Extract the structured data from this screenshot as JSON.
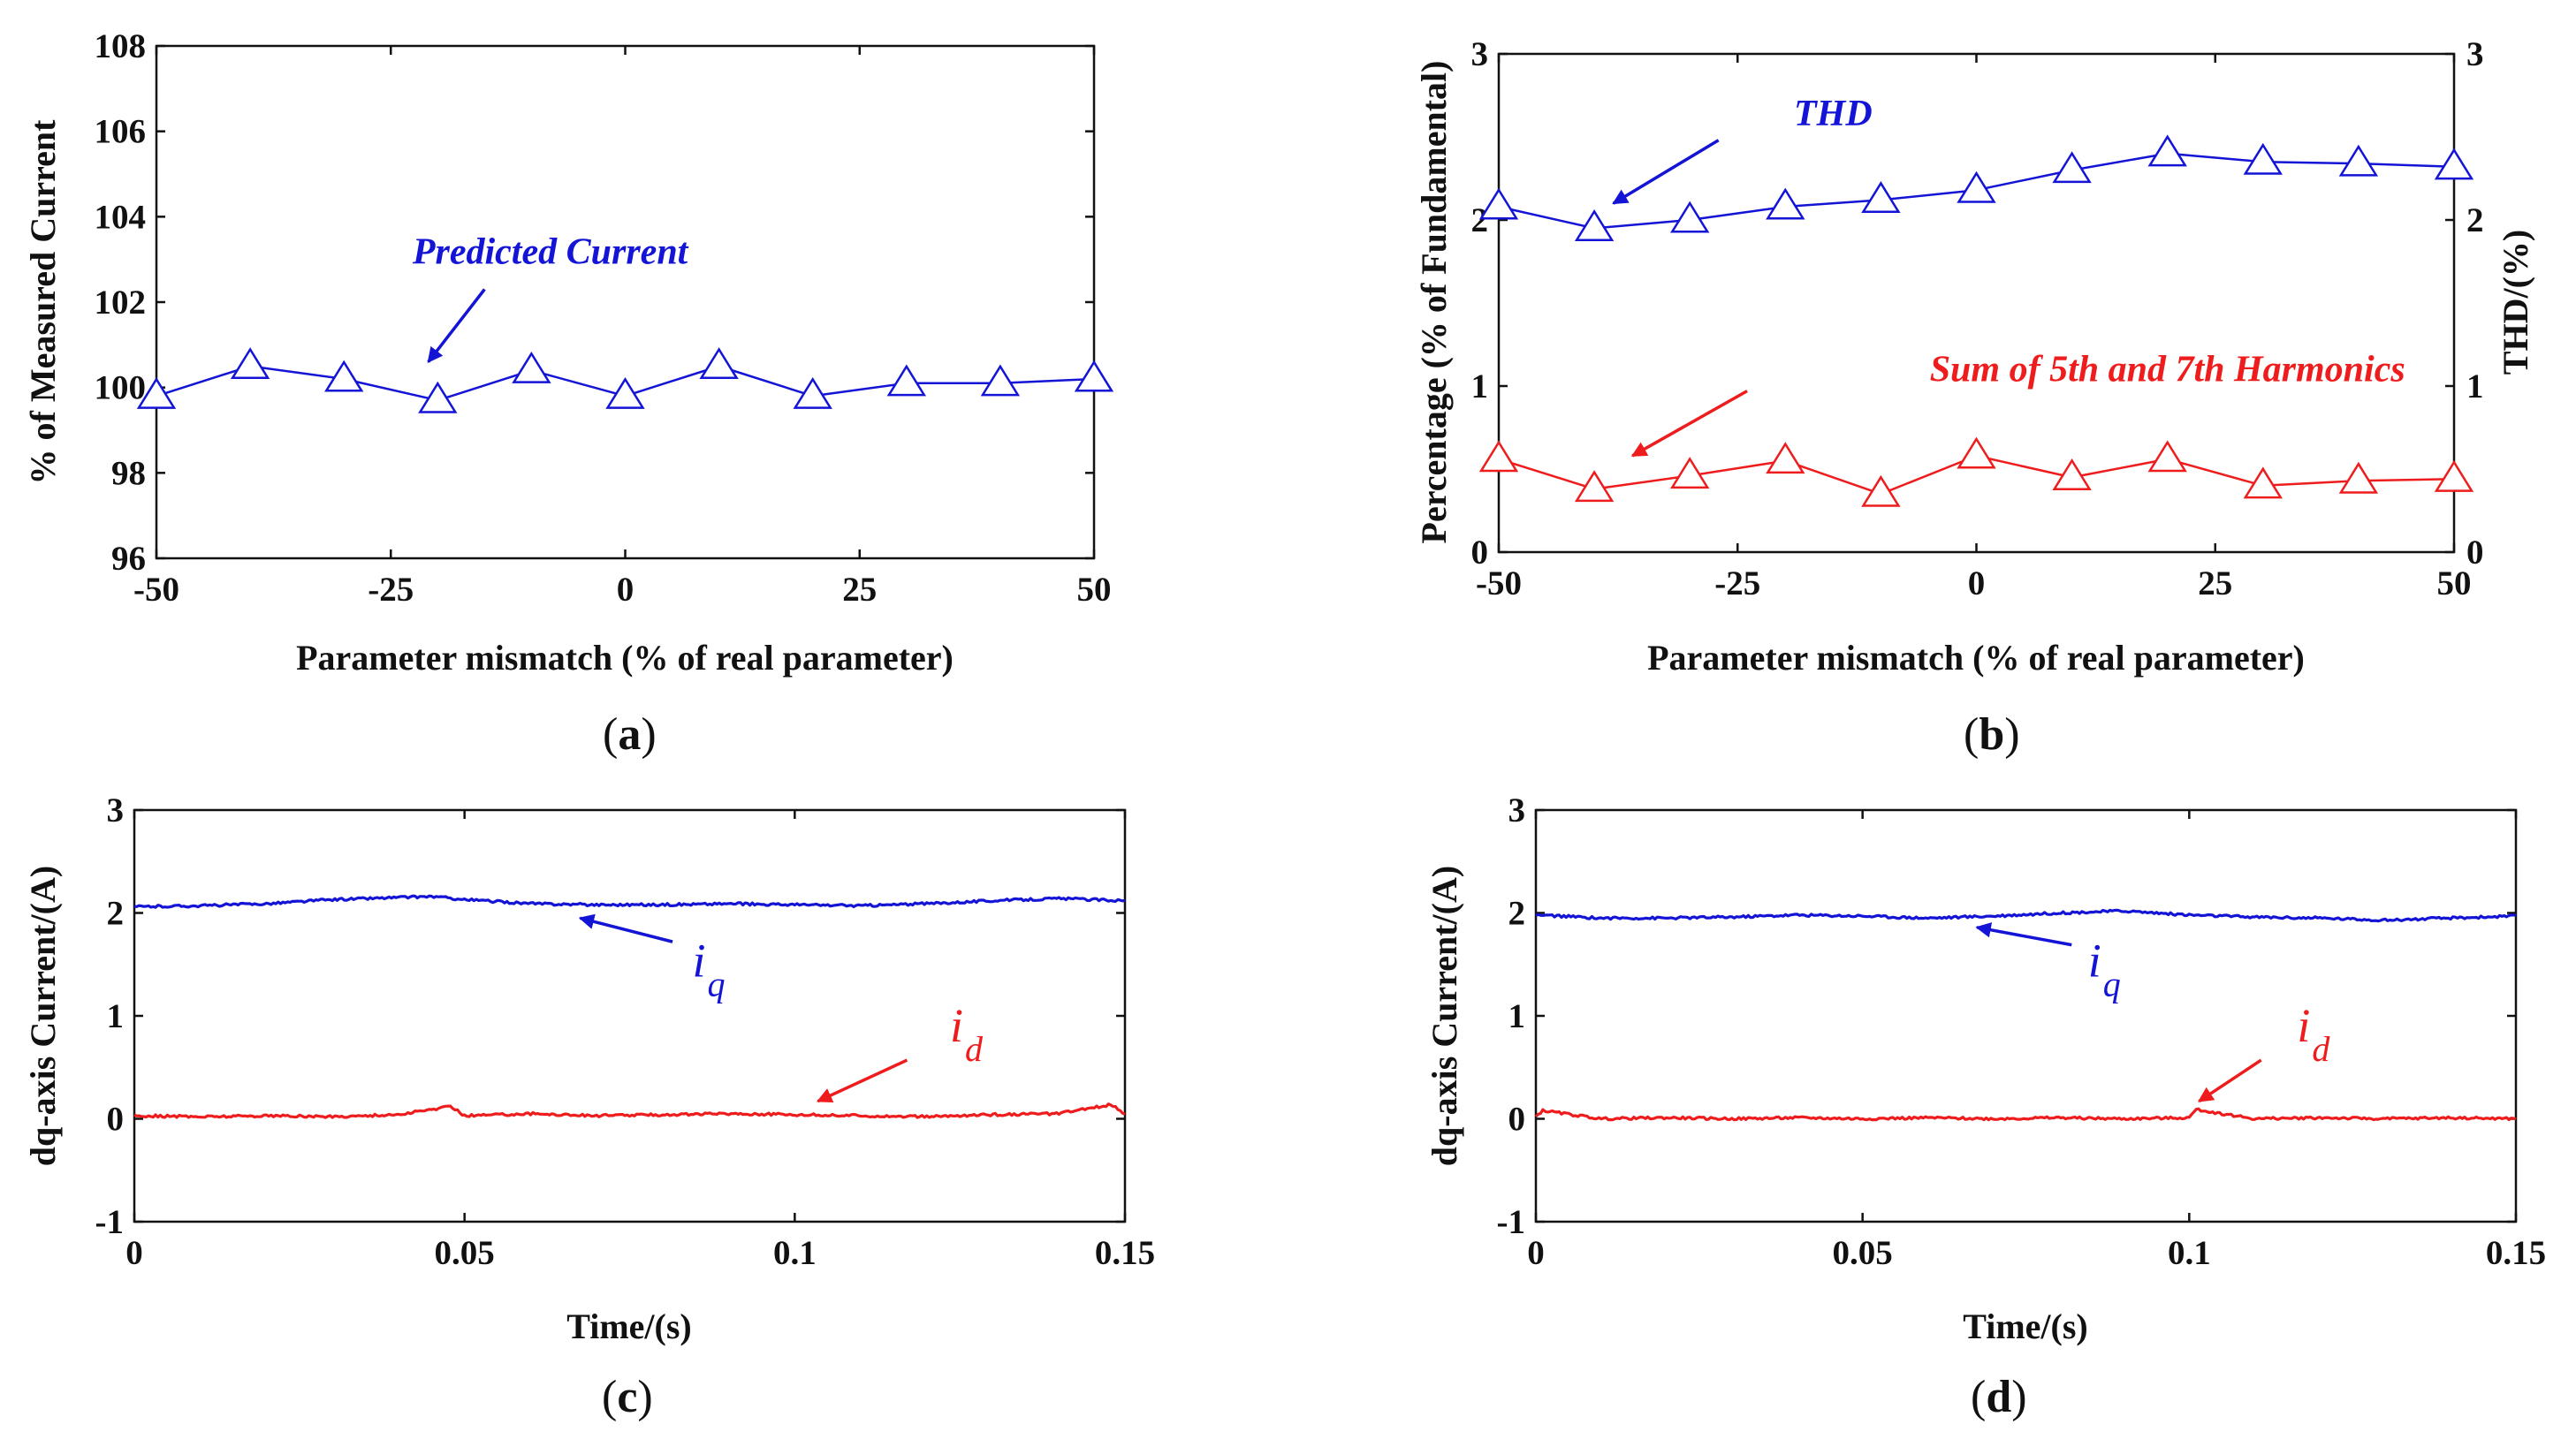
{
  "chart_data": [
    {
      "id": "a",
      "type": "line",
      "caption": "a",
      "xlabel": "Parameter mismatch (% of real parameter)",
      "ylabel": "% of Measured Current",
      "xlim": [
        -50,
        50
      ],
      "ylim": [
        96,
        108
      ],
      "xticks": [
        -50,
        -25,
        0,
        25,
        50
      ],
      "yticks": [
        96,
        98,
        100,
        102,
        104,
        106,
        108
      ],
      "x": [
        -50,
        -40,
        -30,
        -20,
        -10,
        0,
        10,
        20,
        30,
        40,
        50
      ],
      "series": [
        {
          "name": "Predicted Current",
          "color": "#1414d6",
          "marker": "triangle",
          "values": [
            99.8,
            100.5,
            100.2,
            99.7,
            100.4,
            99.8,
            100.5,
            99.8,
            100.1,
            100.1,
            100.2
          ]
        }
      ],
      "annotations": [
        {
          "text": "Predicted Current",
          "color": "#1414d6",
          "x": -8,
          "y": 102.9,
          "arrow_from": [
            -15,
            102.3
          ],
          "arrow_to": [
            -21,
            100.6
          ]
        }
      ]
    },
    {
      "id": "b",
      "type": "line",
      "caption": "b",
      "xlabel": "Parameter mismatch (% of real parameter)",
      "ylabel": "Percentage (% of Fundamental)",
      "ylabel_right": "THD/(%)",
      "xlim": [
        -50,
        50
      ],
      "ylim": [
        0,
        3
      ],
      "xticks": [
        -50,
        -25,
        0,
        25,
        50
      ],
      "yticks": [
        0,
        1,
        2,
        3
      ],
      "x": [
        -50,
        -40,
        -30,
        -20,
        -10,
        0,
        10,
        20,
        30,
        40,
        50
      ],
      "series": [
        {
          "name": "THD",
          "color": "#1414d6",
          "marker": "triangle",
          "axis": "right",
          "values": [
            2.08,
            1.95,
            2.0,
            2.08,
            2.12,
            2.18,
            2.3,
            2.4,
            2.35,
            2.34,
            2.32
          ]
        },
        {
          "name": "Sum of 5th and 7th Harmonics",
          "color": "#ee1c1c",
          "marker": "triangle",
          "axis": "left",
          "values": [
            0.56,
            0.38,
            0.46,
            0.55,
            0.35,
            0.58,
            0.45,
            0.56,
            0.4,
            0.43,
            0.44
          ]
        }
      ],
      "annotations": [
        {
          "text": "THD",
          "color": "#1414d6",
          "x": -15,
          "y": 2.57,
          "arrow_from": [
            -27,
            2.48
          ],
          "arrow_to": [
            -38,
            2.1
          ]
        },
        {
          "text": "Sum of 5th and 7th Harmonics",
          "color": "#ee1c1c",
          "x": 20,
          "y": 1.03,
          "arrow_from": [
            -24,
            0.97
          ],
          "arrow_to": [
            -36,
            0.58
          ]
        }
      ]
    },
    {
      "id": "c",
      "type": "line",
      "caption": "c",
      "xlabel": "Time/(s)",
      "ylabel": "dq-axis Current/(A)",
      "xlim": [
        0,
        0.15
      ],
      "ylim": [
        -1,
        3
      ],
      "xticks": [
        0,
        0.05,
        0.1,
        0.15
      ],
      "yticks": [
        -1,
        0,
        1,
        2,
        3
      ],
      "series": [
        {
          "name": "i_q",
          "color": "#1414d6",
          "x": [
            0,
            0.01,
            0.02,
            0.03,
            0.04,
            0.045,
            0.05,
            0.06,
            0.07,
            0.08,
            0.09,
            0.1,
            0.11,
            0.12,
            0.13,
            0.14,
            0.15
          ],
          "values": [
            2.06,
            2.07,
            2.09,
            2.13,
            2.15,
            2.16,
            2.13,
            2.09,
            2.08,
            2.08,
            2.09,
            2.08,
            2.07,
            2.09,
            2.12,
            2.14,
            2.12
          ]
        },
        {
          "name": "i_d",
          "color": "#ee1c1c",
          "x": [
            0,
            0.01,
            0.02,
            0.03,
            0.04,
            0.048,
            0.05,
            0.06,
            0.07,
            0.08,
            0.09,
            0.1,
            0.11,
            0.12,
            0.13,
            0.14,
            0.148,
            0.15
          ],
          "values": [
            0.03,
            0.02,
            0.03,
            0.02,
            0.04,
            0.12,
            0.03,
            0.05,
            0.03,
            0.04,
            0.05,
            0.04,
            0.03,
            0.02,
            0.04,
            0.05,
            0.14,
            0.05
          ]
        }
      ],
      "annotations": [
        {
          "text": "i",
          "sub": "q",
          "color": "#1414d6",
          "x": 0.0845,
          "y": 1.38,
          "arrow_from": [
            0.0815,
            1.72
          ],
          "arrow_to": [
            0.0675,
            1.95
          ]
        },
        {
          "text": "i",
          "sub": "d",
          "color": "#ee1c1c",
          "x": 0.1235,
          "y": 0.75,
          "arrow_from": [
            0.117,
            0.57
          ],
          "arrow_to": [
            0.1035,
            0.17
          ]
        }
      ]
    },
    {
      "id": "d",
      "type": "line",
      "caption": "d",
      "xlabel": "Time/(s)",
      "ylabel": "dq-axis Current/(A)",
      "xlim": [
        0,
        0.15
      ],
      "ylim": [
        -1,
        3
      ],
      "xticks": [
        0,
        0.05,
        0.1,
        0.15
      ],
      "yticks": [
        -1,
        0,
        1,
        2,
        3
      ],
      "series": [
        {
          "name": "i_q",
          "color": "#1414d6",
          "x": [
            0,
            0.01,
            0.02,
            0.03,
            0.04,
            0.05,
            0.06,
            0.07,
            0.08,
            0.09,
            0.1,
            0.11,
            0.12,
            0.13,
            0.14,
            0.15
          ],
          "values": [
            1.98,
            1.95,
            1.95,
            1.96,
            1.98,
            1.97,
            1.95,
            1.97,
            2.0,
            2.02,
            1.98,
            1.96,
            1.95,
            1.93,
            1.95,
            1.97
          ]
        },
        {
          "name": "i_d",
          "color": "#ee1c1c",
          "x": [
            0,
            0.001,
            0.01,
            0.02,
            0.03,
            0.04,
            0.05,
            0.06,
            0.07,
            0.08,
            0.09,
            0.1,
            0.101,
            0.11,
            0.12,
            0.13,
            0.14,
            0.15
          ],
          "values": [
            0.02,
            0.08,
            0.0,
            0.01,
            0.0,
            0.01,
            0.0,
            0.01,
            0.0,
            0.01,
            0.0,
            0.01,
            0.09,
            0.0,
            0.01,
            0.0,
            0.01,
            0.0
          ]
        }
      ],
      "annotations": [
        {
          "text": "i",
          "sub": "q",
          "color": "#1414d6",
          "x": 0.0845,
          "y": 1.38,
          "arrow_from": [
            0.082,
            1.69
          ],
          "arrow_to": [
            0.0675,
            1.86
          ]
        },
        {
          "text": "i",
          "sub": "d",
          "color": "#ee1c1c",
          "x": 0.1165,
          "y": 0.75,
          "arrow_from": [
            0.111,
            0.57
          ],
          "arrow_to": [
            0.1015,
            0.17
          ]
        }
      ]
    }
  ]
}
